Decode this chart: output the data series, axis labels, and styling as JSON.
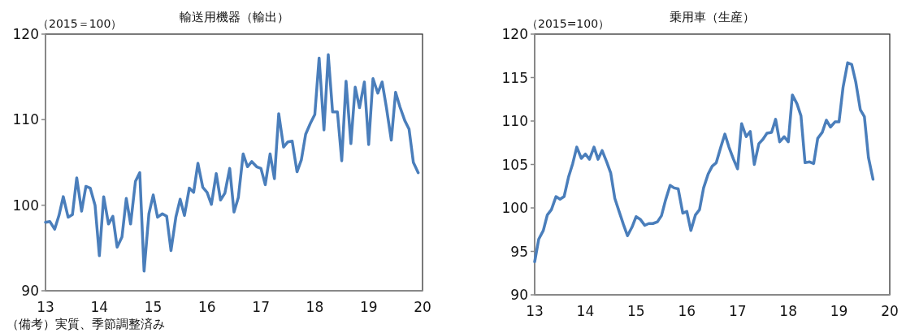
{
  "chart_data": [
    {
      "type": "line",
      "title": "輸送用機器（輸出）",
      "ylabel": "（2015＝100）",
      "xlim": [
        13,
        20
      ],
      "xticks": [
        13,
        14,
        15,
        16,
        17,
        18,
        19,
        20
      ],
      "ylim": [
        90,
        120
      ],
      "yticks": [
        90,
        100,
        110,
        120
      ],
      "annotations": [
        "（備考）実質、季節調整済み"
      ],
      "x": [
        13,
        13.08,
        13.17,
        13.25,
        13.33,
        13.42,
        13.5,
        13.58,
        13.67,
        13.75,
        13.83,
        13.92,
        14,
        14.08,
        14.17,
        14.25,
        14.33,
        14.42,
        14.5,
        14.58,
        14.67,
        14.75,
        14.83,
        14.92,
        15,
        15.08,
        15.17,
        15.25,
        15.33,
        15.42,
        15.5,
        15.58,
        15.67,
        15.75,
        15.83,
        15.92,
        16,
        16.08,
        16.17,
        16.25,
        16.33,
        16.42,
        16.5,
        16.58,
        16.67,
        16.75,
        16.83,
        16.92,
        17,
        17.08,
        17.17,
        17.25,
        17.33,
        17.42,
        17.5,
        17.58,
        17.67,
        17.75,
        17.83,
        17.92,
        18,
        18.08,
        18.17,
        18.25,
        18.33,
        18.42,
        18.5,
        18.58,
        18.67,
        18.75,
        18.83,
        18.92,
        19,
        19.08,
        19.17,
        19.25,
        19.33,
        19.42,
        19.5,
        19.58,
        19.67,
        19.75,
        19.83,
        19.92
      ],
      "series": [
        {
          "color": "#4a7ebb",
          "values": [
            98.0,
            98.1,
            97.2,
            98.8,
            101.0,
            98.6,
            98.9,
            103.2,
            99.3,
            102.2,
            102.0,
            100.0,
            94.1,
            101.0,
            97.8,
            98.7,
            95.1,
            96.3,
            100.8,
            97.8,
            102.8,
            103.8,
            92.3,
            99.0,
            101.2,
            98.6,
            99.0,
            98.7,
            94.7,
            98.6,
            100.7,
            98.8,
            102.0,
            101.5,
            104.9,
            102.1,
            101.5,
            100.1,
            103.7,
            100.6,
            101.4,
            104.3,
            99.2,
            100.9,
            106.0,
            104.5,
            105.1,
            104.5,
            104.3,
            102.4,
            106.0,
            103.1,
            110.7,
            106.8,
            107.4,
            107.5,
            103.9,
            105.3,
            108.3,
            109.6,
            110.6,
            117.2,
            108.8,
            117.6,
            110.9,
            110.9,
            105.2,
            114.5,
            107.2,
            113.8,
            111.4,
            114.4,
            107.1,
            114.8,
            113.1,
            114.4,
            111.4,
            107.6,
            113.2,
            111.5,
            109.9,
            108.9,
            105.0,
            103.8
          ]
        }
      ]
    },
    {
      "type": "line",
      "title": "乗用車（生産）",
      "ylabel": "（2015=100）",
      "xlim": [
        13,
        20
      ],
      "xticks": [
        13,
        14,
        15,
        16,
        17,
        18,
        19,
        20
      ],
      "ylim": [
        90,
        120
      ],
      "yticks": [
        90,
        95,
        100,
        105,
        110,
        115,
        120
      ],
      "x": [
        13,
        13.08,
        13.17,
        13.25,
        13.33,
        13.42,
        13.5,
        13.58,
        13.67,
        13.75,
        13.83,
        13.92,
        14,
        14.08,
        14.17,
        14.25,
        14.33,
        14.42,
        14.5,
        14.58,
        14.67,
        14.75,
        14.83,
        14.92,
        15,
        15.08,
        15.17,
        15.25,
        15.33,
        15.42,
        15.5,
        15.58,
        15.67,
        15.75,
        15.83,
        15.92,
        16,
        16.08,
        16.17,
        16.25,
        16.33,
        16.42,
        16.5,
        16.58,
        16.67,
        16.75,
        16.83,
        16.92,
        17,
        17.08,
        17.17,
        17.25,
        17.33,
        17.42,
        17.5,
        17.58,
        17.67,
        17.75,
        17.83,
        17.92,
        18,
        18.08,
        18.17,
        18.25,
        18.33,
        18.42,
        18.5,
        18.58,
        18.67,
        18.75,
        18.83,
        18.92,
        19,
        19.08,
        19.17,
        19.25,
        19.33,
        19.42,
        19.5,
        19.58,
        19.67
      ],
      "series": [
        {
          "color": "#4a7ebb",
          "values": [
            93.8,
            96.4,
            97.4,
            99.2,
            99.8,
            101.3,
            101.0,
            101.3,
            103.6,
            105.1,
            107.0,
            105.7,
            106.2,
            105.6,
            107.0,
            105.6,
            106.6,
            105.3,
            104.0,
            101.1,
            99.5,
            98.1,
            96.8,
            97.8,
            99.0,
            98.7,
            98.0,
            98.2,
            98.2,
            98.4,
            99.1,
            100.9,
            102.6,
            102.3,
            102.2,
            99.4,
            99.6,
            97.4,
            99.2,
            99.8,
            102.3,
            103.9,
            104.8,
            105.2,
            107.0,
            108.5,
            107.0,
            105.6,
            104.5,
            109.7,
            108.2,
            108.8,
            105.0,
            107.4,
            107.9,
            108.6,
            108.7,
            110.2,
            107.6,
            108.2,
            107.6,
            113.0,
            112.0,
            110.6,
            105.2,
            105.3,
            105.1,
            108.0,
            108.7,
            110.1,
            109.3,
            109.9,
            109.9,
            113.9,
            116.7,
            116.5,
            114.5,
            111.3,
            110.5,
            105.8,
            103.3
          ]
        }
      ]
    }
  ]
}
